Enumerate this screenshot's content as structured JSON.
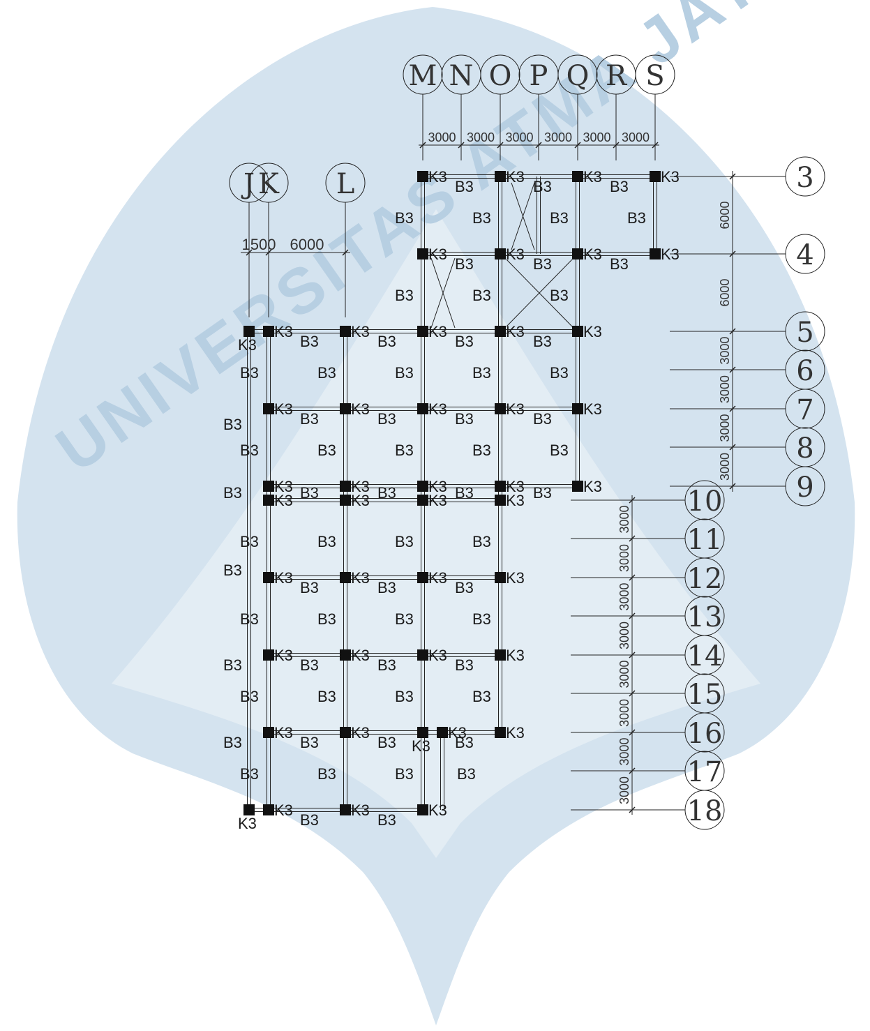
{
  "watermark": {
    "text": "UNIVERSITAS ATMA JAYA YOGYAKARTA",
    "color": "#c6d9ea"
  },
  "grid_columns": {
    "top_labels": [
      "M",
      "N",
      "O",
      "P",
      "Q",
      "R",
      "S"
    ],
    "left_labels": [
      "J",
      "K",
      "L"
    ]
  },
  "grid_rows": {
    "labels": [
      "3",
      "4",
      "5",
      "6",
      "7",
      "8",
      "9",
      "10",
      "11",
      "12",
      "13",
      "14",
      "15",
      "16",
      "17",
      "18"
    ]
  },
  "dimensions": {
    "top_spans": [
      "3000",
      "3000",
      "3000",
      "3000",
      "3000",
      "3000"
    ],
    "left_spans": [
      "1500",
      "6000"
    ],
    "right_upper": [
      "6000",
      "6000",
      "3000",
      "3000",
      "3000",
      "3000"
    ],
    "right_lower": [
      "3000",
      "3000",
      "3000",
      "3000",
      "3000",
      "3000",
      "3000",
      "3000"
    ]
  },
  "labels": {
    "column": "K3",
    "beam": "B3"
  },
  "colors": {
    "line": "#222222",
    "column_fill": "#111111",
    "background": "#ffffff"
  }
}
